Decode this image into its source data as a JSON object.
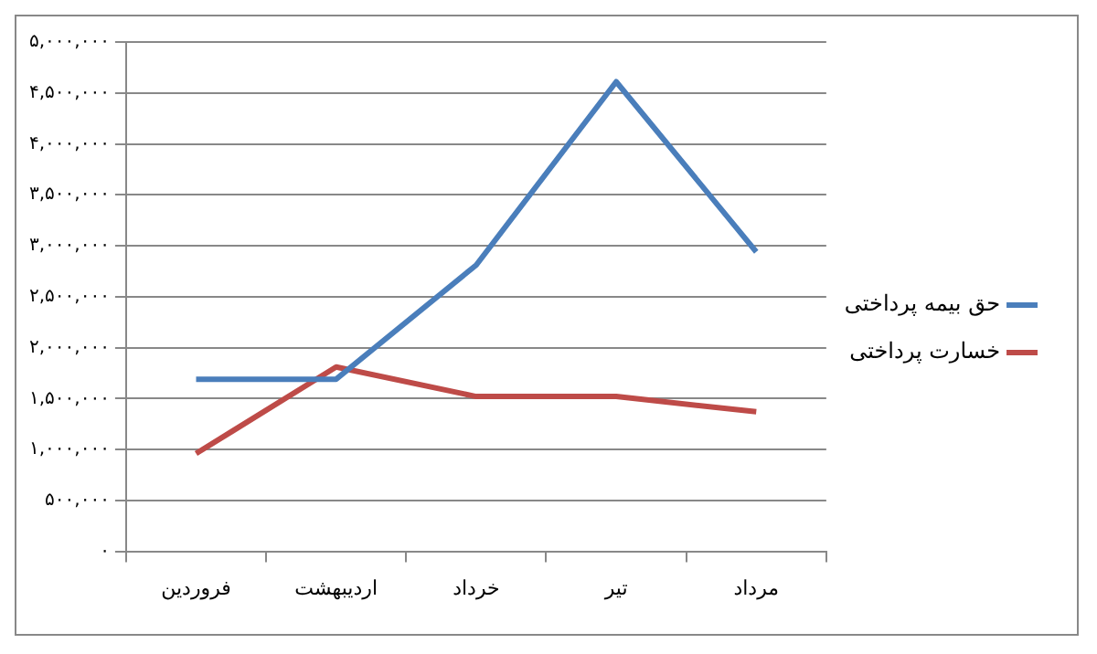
{
  "chart_data": {
    "type": "line",
    "categories": [
      "فروردین",
      "اردیبهشت",
      "خرداد",
      "تیر",
      "مرداد"
    ],
    "series": [
      {
        "name": "حق بیمه پرداختی",
        "color": "#4a7ebb",
        "values": [
          1690000,
          1690000,
          2810000,
          4610000,
          2940000
        ]
      },
      {
        "name": "خسارت پرداختی",
        "color": "#be4b48",
        "values": [
          960000,
          1810000,
          1520000,
          1520000,
          1370000
        ]
      }
    ],
    "ylim": [
      0,
      5000000
    ],
    "yticks": [
      {
        "value": 0,
        "label": "۰"
      },
      {
        "value": 500000,
        "label": "۵۰۰,۰۰۰"
      },
      {
        "value": 1000000,
        "label": "۱,۰۰۰,۰۰۰"
      },
      {
        "value": 1500000,
        "label": "۱,۵۰۰,۰۰۰"
      },
      {
        "value": 2000000,
        "label": "۲,۰۰۰,۰۰۰"
      },
      {
        "value": 2500000,
        "label": "۲,۵۰۰,۰۰۰"
      },
      {
        "value": 3000000,
        "label": "۳,۰۰۰,۰۰۰"
      },
      {
        "value": 3500000,
        "label": "۳,۵۰۰,۰۰۰"
      },
      {
        "value": 4000000,
        "label": "۴,۰۰۰,۰۰۰"
      },
      {
        "value": 4500000,
        "label": "۴,۵۰۰,۰۰۰"
      },
      {
        "value": 5000000,
        "label": "۵,۰۰۰,۰۰۰"
      }
    ],
    "grid": "y",
    "legend": "right",
    "marker": "none",
    "line_style": "solid"
  }
}
